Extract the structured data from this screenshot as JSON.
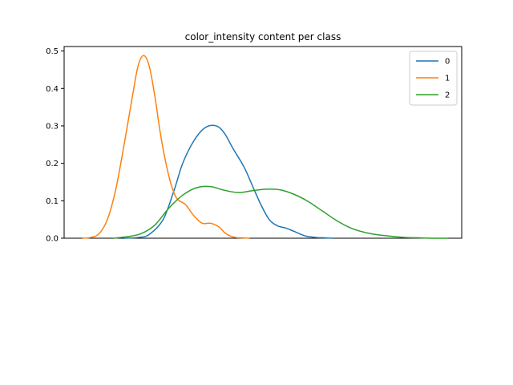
{
  "chart_data": {
    "type": "line",
    "title": "color_intensity content per class",
    "xlabel": "",
    "ylabel": "",
    "ylim": [
      0,
      0.512
    ],
    "yticks": [
      0.0,
      0.1,
      0.2,
      0.3,
      0.4,
      0.5
    ],
    "ytick_labels": [
      "0.0",
      "0.1",
      "0.2",
      "0.3",
      "0.4",
      "0.5"
    ],
    "xlim": [
      0.25,
      14.5
    ],
    "x_tick_labels_shown": false,
    "grid": false,
    "legend_position": "top-right",
    "series": [
      {
        "name": "0",
        "color": "#1f77b4",
        "x": [
          2.4,
          2.9,
          3.3,
          3.8,
          4.2,
          4.5,
          4.9,
          5.3,
          5.7,
          6.0,
          6.3,
          6.7,
          7.0,
          7.3,
          7.6,
          7.9,
          8.2,
          8.5,
          8.9,
          9.3,
          9.6,
          9.9
        ],
        "y": [
          0.0,
          0.002,
          0.01,
          0.05,
          0.13,
          0.2,
          0.26,
          0.295,
          0.3,
          0.28,
          0.24,
          0.19,
          0.14,
          0.09,
          0.05,
          0.033,
          0.027,
          0.018,
          0.006,
          0.002,
          0.001,
          0.0
        ]
      },
      {
        "name": "1",
        "color": "#ff7f0e",
        "x": [
          0.9,
          1.2,
          1.5,
          1.8,
          2.1,
          2.4,
          2.7,
          2.9,
          3.1,
          3.3,
          3.5,
          3.7,
          3.9,
          4.1,
          4.3,
          4.6,
          4.9,
          5.2,
          5.5,
          5.8,
          6.0,
          6.2,
          6.4,
          6.6,
          6.9
        ],
        "y": [
          0.0,
          0.002,
          0.012,
          0.05,
          0.13,
          0.25,
          0.38,
          0.46,
          0.488,
          0.46,
          0.38,
          0.28,
          0.2,
          0.14,
          0.105,
          0.09,
          0.06,
          0.04,
          0.04,
          0.03,
          0.015,
          0.006,
          0.002,
          0.001,
          0.0
        ]
      },
      {
        "name": "2",
        "color": "#2ca02c",
        "x": [
          2.0,
          2.5,
          3.0,
          3.5,
          4.0,
          4.5,
          5.0,
          5.5,
          6.0,
          6.5,
          7.0,
          7.5,
          8.0,
          8.5,
          9.0,
          9.5,
          10.0,
          10.5,
          11.0,
          11.5,
          12.0,
          12.5,
          13.0,
          13.5,
          14.0
        ],
        "y": [
          0.0,
          0.004,
          0.012,
          0.035,
          0.08,
          0.115,
          0.135,
          0.138,
          0.128,
          0.122,
          0.127,
          0.131,
          0.129,
          0.117,
          0.098,
          0.073,
          0.048,
          0.028,
          0.016,
          0.009,
          0.005,
          0.002,
          0.001,
          0.0,
          0.0
        ]
      }
    ]
  }
}
